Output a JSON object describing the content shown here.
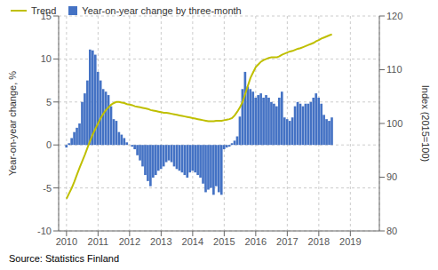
{
  "chart_data": {
    "type": "bar",
    "x": [
      2010,
      2010.083333,
      2010.166667,
      2010.25,
      2010.333333,
      2010.416667,
      2010.5,
      2010.583333,
      2010.666667,
      2010.75,
      2010.833333,
      2010.916667,
      2011,
      2011.083333,
      2011.166667,
      2011.25,
      2011.333333,
      2011.416667,
      2011.5,
      2011.583333,
      2011.666667,
      2011.75,
      2011.833333,
      2011.916667,
      2012,
      2012.083333,
      2012.166667,
      2012.25,
      2012.333333,
      2012.416667,
      2012.5,
      2012.583333,
      2012.666667,
      2012.75,
      2012.833333,
      2012.916667,
      2013,
      2013.083333,
      2013.166667,
      2013.25,
      2013.333333,
      2013.416667,
      2013.5,
      2013.583333,
      2013.666667,
      2013.75,
      2013.833333,
      2013.916667,
      2014,
      2014.083333,
      2014.166667,
      2014.25,
      2014.333333,
      2014.416667,
      2014.5,
      2014.583333,
      2014.666667,
      2014.75,
      2014.833333,
      2014.916667,
      2015,
      2015.083333,
      2015.166667,
      2015.25,
      2015.333333,
      2015.416667,
      2015.5,
      2015.583333,
      2015.666667,
      2015.75,
      2015.833333,
      2015.916667,
      2016,
      2016.083333,
      2016.166667,
      2016.25,
      2016.333333,
      2016.416667,
      2016.5,
      2016.583333,
      2016.666667,
      2016.75,
      2016.833333,
      2016.916667,
      2017,
      2017.083333,
      2017.166667,
      2017.25,
      2017.333333,
      2017.416667,
      2017.5,
      2017.583333,
      2017.666667,
      2017.75,
      2017.833333,
      2017.916667,
      2018,
      2018.083333,
      2018.166667,
      2018.25,
      2018.333333,
      2018.416667
    ],
    "series": [
      {
        "name": "Trend",
        "type": "line",
        "axis": "y2",
        "color": "#BFBF00",
        "values": [
          86.0,
          87.0,
          88.0,
          89.2,
          90.5,
          91.8,
          93.0,
          94.2,
          95.5,
          96.8,
          98.0,
          99.0,
          100.0,
          101.0,
          101.8,
          102.5,
          103.0,
          103.5,
          103.8,
          104.0,
          104.0,
          103.9,
          103.8,
          103.6,
          103.5,
          103.4,
          103.2,
          103.1,
          103.0,
          102.9,
          102.8,
          102.7,
          102.5,
          102.4,
          102.3,
          102.2,
          102.1,
          102.0,
          102.0,
          101.9,
          101.8,
          101.7,
          101.6,
          101.5,
          101.4,
          101.3,
          101.2,
          101.1,
          101.0,
          100.9,
          100.8,
          100.7,
          100.6,
          100.5,
          100.4,
          100.4,
          100.4,
          100.5,
          100.5,
          100.5,
          100.6,
          100.7,
          100.8,
          101.0,
          101.5,
          102.2,
          103.0,
          104.0,
          105.5,
          107.0,
          108.5,
          109.5,
          110.5,
          111.0,
          111.5,
          111.8,
          112.0,
          112.2,
          112.3,
          112.3,
          112.3,
          112.5,
          112.8,
          113.0,
          113.2,
          113.4,
          113.5,
          113.7,
          113.9,
          114.0,
          114.2,
          114.4,
          114.6,
          114.8,
          115.0,
          115.3,
          115.5,
          115.8,
          116.0,
          116.2,
          116.4,
          116.6
        ]
      },
      {
        "name": "Year-on-year change by three-month",
        "type": "bar",
        "color": "#4472C4",
        "values": [
          -0.3,
          0.2,
          0.8,
          1.5,
          2.0,
          2.5,
          5.0,
          6.0,
          7.5,
          11.1,
          11.0,
          10.5,
          8.5,
          7.5,
          6.5,
          6.2,
          5.8,
          4.5,
          3.0,
          2.8,
          1.5,
          1.2,
          0.8,
          0.3,
          0.0,
          -0.2,
          -0.5,
          -1.2,
          -1.8,
          -2.5,
          -3.5,
          -4.2,
          -4.8,
          -3.8,
          -3.5,
          -3.0,
          -2.8,
          -2.5,
          -2.0,
          -1.8,
          -2.0,
          -2.5,
          -2.8,
          -3.0,
          -3.2,
          -3.5,
          -3.8,
          -3.2,
          -3.0,
          -3.2,
          -3.5,
          -3.8,
          -4.5,
          -5.5,
          -5.2,
          -5.0,
          -5.8,
          -4.8,
          -5.5,
          -5.8,
          -0.5,
          -0.3,
          -0.2,
          0.2,
          0.5,
          1.0,
          3.3,
          6.5,
          8.5,
          6.8,
          6.5,
          6.2,
          5.5,
          5.8,
          6.0,
          5.5,
          5.8,
          5.5,
          5.0,
          4.8,
          4.5,
          5.5,
          6.2,
          3.2,
          3.0,
          2.8,
          3.2,
          4.5,
          5.0,
          4.8,
          4.5,
          4.8,
          4.8,
          5.0,
          5.5,
          6.0,
          5.5,
          4.8,
          3.5,
          3.0,
          2.8,
          3.2
        ]
      }
    ],
    "xlim": [
      2009.75,
      2019.92
    ],
    "xticks": [
      2010,
      2011,
      2012,
      2013,
      2014,
      2015,
      2016,
      2017,
      2018,
      2019
    ],
    "ylim": [
      -10,
      15
    ],
    "yticks": [
      -10,
      -5,
      0,
      5,
      10,
      15
    ],
    "y2lim": [
      80,
      120
    ],
    "y2ticks": [
      80,
      90,
      100,
      110,
      120
    ],
    "ylabel": "Year-on-year change, %",
    "y2label": "Index (2015=100)",
    "grid": true,
    "legend": "upper left",
    "annotations": [
      "Source: Statistics Finland"
    ]
  }
}
